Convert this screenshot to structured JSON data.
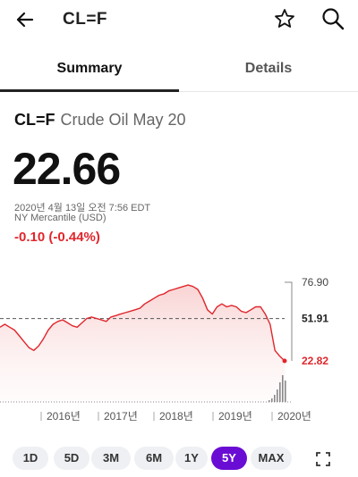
{
  "header": {
    "title": "CL=F"
  },
  "tabs": [
    {
      "label": "Summary",
      "active": true
    },
    {
      "label": "Details",
      "active": false
    }
  ],
  "quote": {
    "symbol": "CL=F",
    "name": "Crude Oil May 20",
    "price": "22.66",
    "timestamp": "2020년 4월 13일 오전 7:56 EDT",
    "exchange": "NY Mercantile (USD)",
    "change": "-0.10 (-0.44%)"
  },
  "colors": {
    "negative": "#e0262c",
    "accent": "#6a0dd4"
  },
  "chart_data": {
    "type": "area",
    "x_labels": [
      "2016년",
      "2017년",
      "2018년",
      "2019년",
      "2020년"
    ],
    "y_labels": [
      "76.90",
      "51.91",
      "22.82"
    ],
    "current": 22.82,
    "reference": 51.91,
    "high": 76.9,
    "ylim": [
      22.82,
      76.9
    ],
    "series": [
      {
        "values": [
          46,
          48,
          46,
          44,
          40,
          36,
          32,
          30,
          33,
          38,
          44,
          48,
          50,
          51,
          49,
          47,
          46,
          49,
          52,
          53,
          52,
          51,
          50,
          53,
          54,
          55,
          56,
          57,
          58,
          59,
          62,
          64,
          66,
          68,
          69,
          71,
          72,
          73,
          74,
          75,
          74,
          72,
          66,
          58,
          55,
          60,
          62,
          60,
          61,
          60,
          57,
          56,
          58,
          60,
          60,
          55,
          48,
          30,
          26,
          22.82
        ]
      }
    ]
  },
  "ranges": [
    {
      "label": "1D",
      "selected": false
    },
    {
      "label": "5D",
      "selected": false
    },
    {
      "label": "3M",
      "selected": false
    },
    {
      "label": "6M",
      "selected": false
    },
    {
      "label": "1Y",
      "selected": false
    },
    {
      "label": "5Y",
      "selected": true
    },
    {
      "label": "MAX",
      "selected": false
    }
  ]
}
